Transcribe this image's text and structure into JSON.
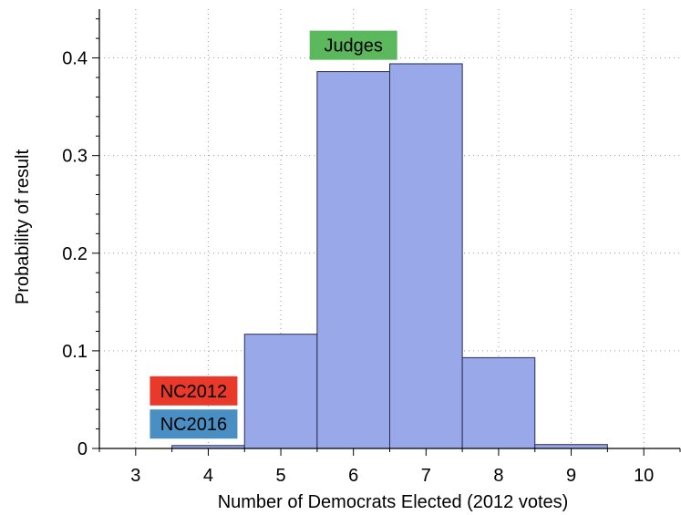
{
  "chart_data": {
    "type": "bar",
    "xlabel": "Number of Democrats Elected (2012 votes)",
    "ylabel": "Probability of result",
    "xlim": [
      2.5,
      10.5
    ],
    "ylim": [
      0,
      0.45
    ],
    "grid": true,
    "bar_color": "#99a8e8",
    "bar_edge_color": "#2b2b50",
    "x_ticks": [
      3,
      4,
      5,
      6,
      7,
      8,
      9,
      10
    ],
    "x_tick_labels": [
      "3",
      "4",
      "5",
      "6",
      "7",
      "8",
      "9",
      "10"
    ],
    "y_ticks": [
      0,
      0.1,
      0.2,
      0.3,
      0.4
    ],
    "y_tick_labels": [
      "0",
      "0.1",
      "0.2",
      "0.3",
      "0.4"
    ],
    "categories": [
      4,
      5,
      6,
      7,
      8,
      9
    ],
    "values": [
      0.003,
      0.117,
      0.386,
      0.394,
      0.093,
      0.004
    ],
    "annotations": [
      {
        "text": "Judges",
        "x": 6.0,
        "color": "#5cb85c"
      },
      {
        "text": "NC2012",
        "x": 4.0,
        "color": "#e8392b"
      },
      {
        "text": "NC2016",
        "x": 4.0,
        "color": "#4a8fc4"
      }
    ]
  }
}
